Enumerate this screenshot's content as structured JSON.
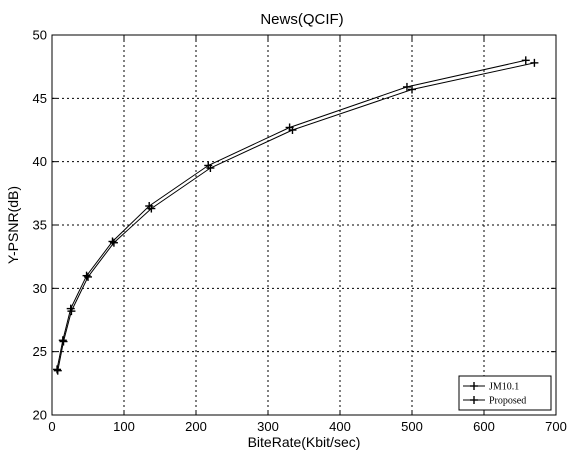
{
  "chart_data": {
    "type": "line",
    "title": "News(QCIF)",
    "xlabel": "BiteRate(Kbit/sec)",
    "ylabel": "Y-PSNR(dB)",
    "xlim": [
      0,
      700
    ],
    "ylim": [
      20,
      50
    ],
    "xticks": [
      0,
      100,
      200,
      300,
      400,
      500,
      600,
      700
    ],
    "yticks": [
      20,
      25,
      30,
      35,
      40,
      45,
      50
    ],
    "grid": true,
    "legend_position": "bottom-right",
    "series": [
      {
        "name": "JM10.1",
        "marker": "+",
        "x": [
          7,
          15,
          26,
          48,
          84,
          135,
          217,
          330,
          493,
          658
        ],
        "y": [
          23.6,
          25.9,
          28.4,
          31.0,
          33.7,
          36.5,
          39.7,
          42.7,
          45.9,
          48.0
        ]
      },
      {
        "name": "Proposed",
        "marker": "+",
        "x": [
          8,
          16,
          27,
          50,
          86,
          138,
          220,
          334,
          500,
          670
        ],
        "y": [
          23.5,
          25.8,
          28.2,
          30.9,
          33.6,
          36.3,
          39.5,
          42.5,
          45.7,
          47.8
        ]
      }
    ]
  }
}
